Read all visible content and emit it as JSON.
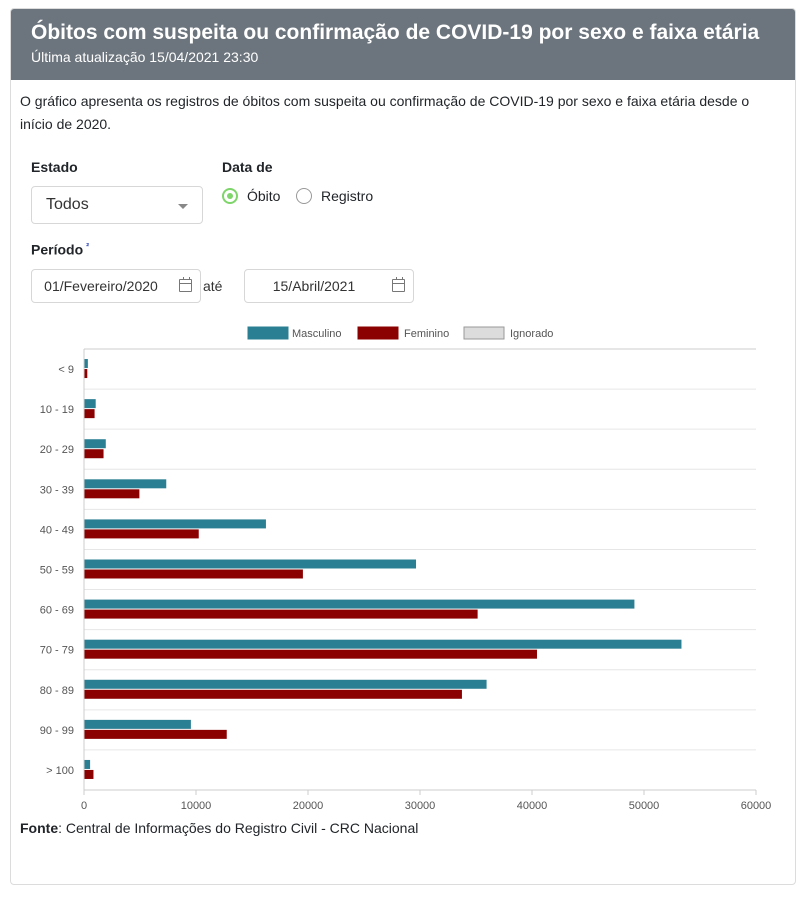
{
  "header": {
    "title": "Óbitos com suspeita ou confirmação de COVID-19 por sexo e faixa etária",
    "updated": "Última atualização 15/04/2021 23:30"
  },
  "description": "O gráfico apresenta os registros de óbitos com suspeita ou confirmação de COVID-19 por sexo e faixa etária desde o início de 2020.",
  "filters": {
    "estado_label": "Estado",
    "estado_value": "Todos",
    "data_de_label": "Data de",
    "radio_obito": "Óbito",
    "radio_registro": "Registro",
    "selected": "obito",
    "periodo_label": "Período",
    "periodo_sup": "²",
    "start_date": "01/Fevereiro/2020",
    "ate": "até",
    "end_date": "15/Abril/2021"
  },
  "chart_data": {
    "type": "bar",
    "orientation": "horizontal",
    "categories": [
      "< 9",
      "10 - 19",
      "20 - 29",
      "30 - 39",
      "40 - 49",
      "50 - 59",
      "60 - 69",
      "70 - 79",
      "80 - 89",
      "90 - 99",
      "> 100"
    ],
    "series": [
      {
        "name": "Masculino",
        "color": "#2b7f93",
        "values": [
          300,
          1000,
          1900,
          7300,
          16200,
          29600,
          49100,
          53300,
          35900,
          9500,
          500
        ]
      },
      {
        "name": "Feminino",
        "color": "#8b0000",
        "values": [
          250,
          900,
          1700,
          4900,
          10200,
          19500,
          35100,
          40400,
          33700,
          12700,
          800
        ]
      },
      {
        "name": "Ignorado",
        "color": "#dcdcdc",
        "values": [
          0,
          0,
          0,
          0,
          0,
          0,
          0,
          0,
          0,
          0,
          0
        ]
      }
    ],
    "xlim": [
      0,
      60000
    ],
    "xticks": [
      0,
      10000,
      20000,
      30000,
      40000,
      50000,
      60000
    ],
    "legend_position": "top",
    "grid": true
  },
  "fonte": {
    "label": "Fonte",
    "text": ": Central de Informações do Registro Civil - CRC Nacional"
  }
}
